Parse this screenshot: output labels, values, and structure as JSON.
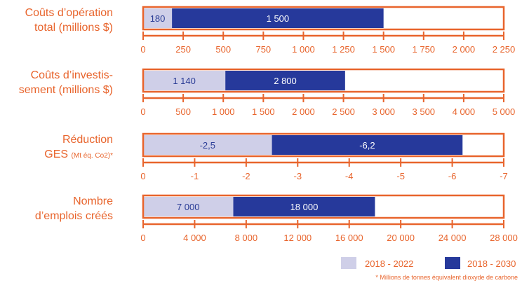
{
  "colors": {
    "accent": "#e8642c",
    "period_short": "#cfcfe8",
    "period_long": "#26399b",
    "label_on_light": "#2b3d96",
    "label_on_dark": "#ffffff"
  },
  "chart_data": {
    "type": "bar",
    "orientation": "horizontal",
    "stacked": true,
    "legend_position": "bottom-right",
    "legend": [
      "2018 - 2022",
      "2018 - 2030"
    ],
    "footnote": "* Millions de tonnes équivalent dioxyde de carbone",
    "panels": [
      {
        "label_lines": [
          {
            "text": "Coûts d’opération",
            "small": ""
          },
          {
            "text": "total (millions $)",
            "small": ""
          }
        ],
        "axis_min": 0,
        "axis_max": 2250,
        "ticks": [
          "0",
          "250",
          "500",
          "750",
          "1 000",
          "1 250",
          "1 500",
          "1 750",
          "2 000",
          "2 250"
        ],
        "tick_values": [
          0,
          250,
          500,
          750,
          1000,
          1250,
          1500,
          1750,
          2000,
          2250
        ],
        "segments": [
          {
            "series": "2018 - 2022",
            "start": 0,
            "end": 180,
            "label": "180"
          },
          {
            "series": "2018 - 2030",
            "start": 180,
            "end": 1500,
            "label": "1 500"
          }
        ]
      },
      {
        "label_lines": [
          {
            "text": "Coûts d’investis-",
            "small": ""
          },
          {
            "text": "sement (millions $)",
            "small": ""
          }
        ],
        "axis_min": 0,
        "axis_max": 5000,
        "ticks": [
          "0",
          "500",
          "1 000",
          "1 500",
          "2 000",
          "2 500",
          "3 000",
          "3 500",
          "4 000",
          "5 000"
        ],
        "tick_values": [
          0,
          500,
          1000,
          1500,
          2000,
          2500,
          3000,
          3500,
          4000,
          5000
        ],
        "segments": [
          {
            "series": "2018 - 2022",
            "start": 0,
            "end": 1140,
            "label": "1 140"
          },
          {
            "series": "2018 - 2030",
            "start": 1140,
            "end": 2800,
            "label": "2 800"
          }
        ]
      },
      {
        "label_lines": [
          {
            "text": "Réduction",
            "small": ""
          },
          {
            "text": "GES ",
            "small": "(Mt éq. Co2)*"
          }
        ],
        "axis_min": 0,
        "axis_max": -7,
        "ticks": [
          "0",
          "-1",
          "-2",
          "-3",
          "-4",
          "-5",
          "-6",
          "-7"
        ],
        "tick_values": [
          0,
          -1,
          -2,
          -3,
          -4,
          -5,
          -6,
          -7
        ],
        "segments": [
          {
            "series": "2018 - 2022",
            "start": 0,
            "end": -2.5,
            "label": "-2,5"
          },
          {
            "series": "2018 - 2030",
            "start": -2.5,
            "end": -6.2,
            "label": "-6,2"
          }
        ]
      },
      {
        "label_lines": [
          {
            "text": "Nombre",
            "small": ""
          },
          {
            "text": "d’emplois créés",
            "small": ""
          }
        ],
        "axis_min": 0,
        "axis_max": 28000,
        "ticks": [
          "0",
          "4 000",
          "8 000",
          "12 000",
          "16 000",
          "20 000",
          "24 000",
          "28 000"
        ],
        "tick_values": [
          0,
          4000,
          8000,
          12000,
          16000,
          20000,
          24000,
          28000
        ],
        "segments": [
          {
            "series": "2018 - 2022",
            "start": 0,
            "end": 7000,
            "label": "7 000"
          },
          {
            "series": "2018 - 2030",
            "start": 7000,
            "end": 18000,
            "label": "18 000"
          }
        ]
      }
    ]
  }
}
